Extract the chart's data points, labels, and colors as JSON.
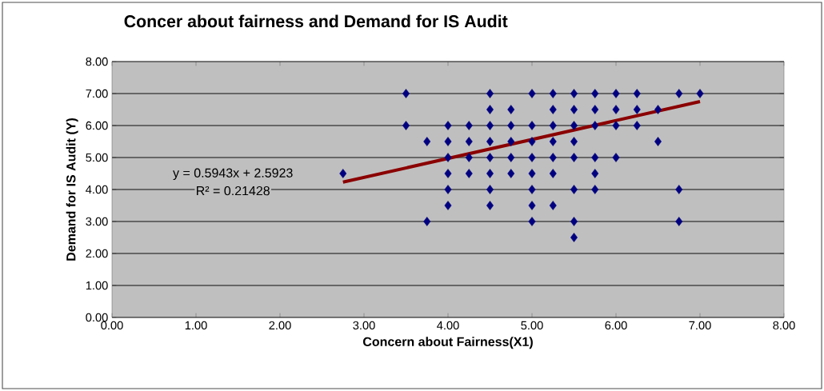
{
  "chart_data": {
    "type": "scatter",
    "title": "Concer about fairness and Demand for IS Audit",
    "xlabel": "Concern about Fairness(X1)",
    "ylabel": "Demand for IS Audit (Y)",
    "xlim": [
      0,
      8
    ],
    "ylim": [
      0,
      8
    ],
    "xticks": [
      {
        "value": 0,
        "label": "0.00"
      },
      {
        "value": 1,
        "label": "1.00"
      },
      {
        "value": 2,
        "label": "2.00"
      },
      {
        "value": 3,
        "label": "3.00"
      },
      {
        "value": 4,
        "label": "4.00"
      },
      {
        "value": 5,
        "label": "5.00"
      },
      {
        "value": 6,
        "label": "6.00"
      },
      {
        "value": 7,
        "label": "7.00"
      },
      {
        "value": 8,
        "label": "8.00"
      }
    ],
    "yticks": [
      {
        "value": 0,
        "label": "0.00"
      },
      {
        "value": 1,
        "label": "1.00"
      },
      {
        "value": 2,
        "label": "2.00"
      },
      {
        "value": 3,
        "label": "3.00"
      },
      {
        "value": 4,
        "label": "4.00"
      },
      {
        "value": 5,
        "label": "5.00"
      },
      {
        "value": 6,
        "label": "6.00"
      },
      {
        "value": 7,
        "label": "7.00"
      },
      {
        "value": 8,
        "label": "8.00"
      }
    ],
    "grid": "y",
    "marker": "diamond",
    "annotations": [
      "y = 0.5943x + 2.5923",
      "R² = 0.21428"
    ],
    "series": [
      {
        "color": "#000080",
        "x": [
          2.75,
          3.5,
          3.5,
          3.75,
          3.75,
          4,
          4,
          4,
          4,
          4,
          4,
          4.25,
          4.25,
          4.25,
          4.25,
          4.5,
          4.5,
          4.5,
          4.5,
          4.5,
          4.5,
          4.5,
          4.5,
          4.75,
          4.75,
          4.75,
          4.75,
          4.75,
          5,
          5,
          5,
          5,
          5,
          5,
          5,
          5,
          5.25,
          5.25,
          5.25,
          5.25,
          5.25,
          5.25,
          5.25,
          5.5,
          5.5,
          5.5,
          5.5,
          5.5,
          5.5,
          5.5,
          5.5,
          5.75,
          5.75,
          5.75,
          5.75,
          5.75,
          5.75,
          6,
          6,
          6,
          6,
          6.25,
          6.25,
          6.25,
          6.5,
          6.5,
          6.75,
          6.75,
          6.75,
          7
        ],
        "values": [
          4.5,
          7,
          6,
          5.5,
          3,
          6,
          5.5,
          5,
          4.5,
          4,
          3.5,
          6,
          5.5,
          5,
          4.5,
          7,
          6.5,
          6,
          5.5,
          5,
          4.5,
          4,
          3.5,
          6.5,
          6,
          5.5,
          5,
          4.5,
          7,
          6,
          5.5,
          5,
          4.5,
          4,
          3.5,
          3,
          7,
          6.5,
          6,
          5.5,
          5,
          4.5,
          3.5,
          7,
          6.5,
          6,
          5.5,
          5,
          4,
          3,
          2.5,
          7,
          6.5,
          6,
          5,
          4.5,
          4,
          7,
          6.5,
          6,
          5,
          7,
          6.5,
          6,
          6.5,
          5.5,
          7,
          4,
          3,
          7
        ]
      },
      {
        "type": "line",
        "color": "#8b0000",
        "line_style": "solid",
        "marker": "none",
        "x": [
          2.75,
          7
        ],
        "values": [
          4.23,
          6.75
        ]
      }
    ]
  }
}
